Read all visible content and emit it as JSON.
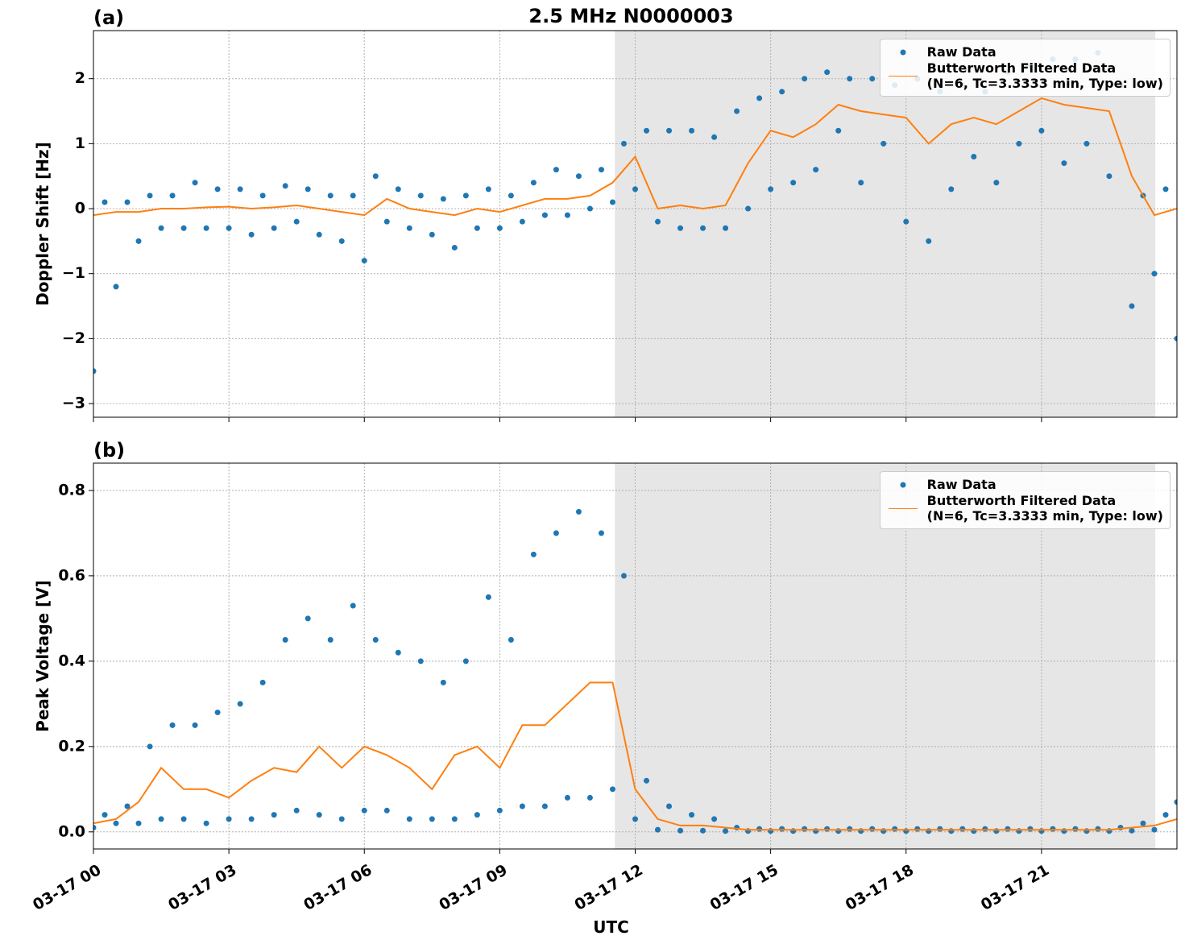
{
  "chart_data": [
    {
      "type": "line",
      "title": "2.5 MHz N0000003",
      "panel_label": "(a)",
      "ylabel": "Doppler Shift [Hz]",
      "xlim": [
        0,
        24
      ],
      "xticks": [
        0,
        3,
        6,
        9,
        12,
        15,
        18,
        21
      ],
      "ylim": [
        -3.21,
        2.74
      ],
      "yticks": [
        {
          "value": -3,
          "label": "−3"
        },
        {
          "value": -2,
          "label": "−2"
        },
        {
          "value": -1,
          "label": "−1"
        },
        0,
        1,
        2
      ],
      "grid": true,
      "shaded_span": [
        11.55,
        23.52
      ],
      "legend": "upper right",
      "series": [
        {
          "name": "Raw Data",
          "kind": "scatter",
          "color": "#1f77b4",
          "x": [
            0,
            0.25,
            0.5,
            0.75,
            1,
            1.25,
            1.5,
            1.75,
            2,
            2.25,
            2.5,
            2.75,
            3,
            3.25,
            3.5,
            3.75,
            4,
            4.25,
            4.5,
            4.75,
            5,
            5.25,
            5.5,
            5.75,
            6,
            6.25,
            6.5,
            6.75,
            7,
            7.25,
            7.5,
            7.75,
            8,
            8.25,
            8.5,
            8.75,
            9,
            9.25,
            9.5,
            9.75,
            10,
            10.25,
            10.5,
            10.75,
            11,
            11.25,
            11.5,
            11.75,
            12,
            12.25,
            12.5,
            12.75,
            13,
            13.25,
            13.5,
            13.75,
            14,
            14.25,
            14.5,
            14.75,
            15,
            15.25,
            15.5,
            15.75,
            16,
            16.25,
            16.5,
            16.75,
            17,
            17.25,
            17.5,
            17.75,
            18,
            18.25,
            18.5,
            18.75,
            19,
            19.25,
            19.5,
            19.75,
            20,
            20.25,
            20.5,
            20.75,
            21,
            21.25,
            21.5,
            21.75,
            22,
            22.25,
            22.5,
            22.75,
            23,
            23.25,
            23.5,
            23.75,
            24
          ],
          "values": [
            -2.5,
            0.1,
            -1.2,
            0.1,
            -0.5,
            0.2,
            -0.3,
            0.2,
            -0.3,
            0.4,
            -0.3,
            0.3,
            -0.3,
            0.3,
            -0.4,
            0.2,
            -0.3,
            0.35,
            -0.2,
            0.3,
            -0.4,
            0.2,
            -0.5,
            0.2,
            -0.8,
            0.5,
            -0.2,
            0.3,
            -0.3,
            0.2,
            -0.4,
            0.15,
            -0.6,
            0.2,
            -0.3,
            0.3,
            -0.3,
            0.2,
            -0.2,
            0.4,
            -0.1,
            0.6,
            -0.1,
            0.5,
            0,
            0.6,
            0.1,
            1.0,
            0.3,
            1.2,
            -0.2,
            1.2,
            -0.3,
            1.2,
            -0.3,
            1.1,
            -0.3,
            1.5,
            0,
            1.7,
            0.3,
            1.8,
            0.4,
            2.0,
            0.6,
            2.1,
            1.2,
            2.0,
            0.4,
            2.0,
            1.0,
            1.9,
            -0.2,
            2.0,
            -0.5,
            1.8,
            0.3,
            1.9,
            0.8,
            1.8,
            0.4,
            2.1,
            1.0,
            2.2,
            1.2,
            2.3,
            0.7,
            2.3,
            1.0,
            2.4,
            0.5,
            1.9,
            -1.5,
            0.2,
            -1.0,
            0.3,
            -2.0
          ]
        },
        {
          "name": "Butterworth Filtered Data\n(N=6, Tc=3.3333 min, Type: low)",
          "kind": "line",
          "color": "#ff7f0e",
          "x": [
            0,
            0.5,
            1,
            1.5,
            2,
            2.5,
            3,
            3.5,
            4,
            4.5,
            5,
            5.5,
            6,
            6.5,
            7,
            7.5,
            8,
            8.5,
            9,
            9.5,
            10,
            10.5,
            11,
            11.5,
            12,
            12.5,
            13,
            13.5,
            14,
            14.5,
            15,
            15.5,
            16,
            16.5,
            17,
            17.5,
            18,
            18.5,
            19,
            19.5,
            20,
            20.5,
            21,
            21.5,
            22,
            22.5,
            23,
            23.5,
            24
          ],
          "values": [
            -0.1,
            -0.05,
            -0.05,
            0,
            0,
            0.02,
            0.03,
            0,
            0.02,
            0.05,
            0,
            -0.05,
            -0.1,
            0.15,
            0,
            -0.05,
            -0.1,
            0,
            -0.05,
            0.05,
            0.15,
            0.15,
            0.2,
            0.4,
            0.8,
            0,
            0.05,
            0,
            0.05,
            0.7,
            1.2,
            1.1,
            1.3,
            1.6,
            1.5,
            1.45,
            1.4,
            1.0,
            1.3,
            1.4,
            1.3,
            1.5,
            1.7,
            1.6,
            1.55,
            1.5,
            0.5,
            -0.1,
            0
          ]
        }
      ]
    },
    {
      "type": "line",
      "panel_label": "(b)",
      "ylabel": "Peak Voltage [V]",
      "xlabel": "UTC",
      "xlim": [
        0,
        24
      ],
      "xticks": [
        {
          "value": 0,
          "label": "03-17 00"
        },
        {
          "value": 3,
          "label": "03-17 03"
        },
        {
          "value": 6,
          "label": "03-17 06"
        },
        {
          "value": 9,
          "label": "03-17 09"
        },
        {
          "value": 12,
          "label": "03-17 12"
        },
        {
          "value": 15,
          "label": "03-17 15"
        },
        {
          "value": 18,
          "label": "03-17 18"
        },
        {
          "value": 21,
          "label": "03-17 21"
        }
      ],
      "ylim": [
        -0.04,
        0.864
      ],
      "yticks": [
        {
          "value": 0,
          "label": "0.0"
        },
        0.2,
        0.4,
        0.6,
        0.8
      ],
      "grid": true,
      "shaded_span": [
        11.55,
        23.52
      ],
      "legend": "upper right",
      "series": [
        {
          "name": "Raw Data",
          "kind": "scatter",
          "color": "#1f77b4",
          "x": [
            0,
            0.25,
            0.5,
            0.75,
            1,
            1.25,
            1.5,
            1.75,
            2,
            2.25,
            2.5,
            2.75,
            3,
            3.25,
            3.5,
            3.75,
            4,
            4.25,
            4.5,
            4.75,
            5,
            5.25,
            5.5,
            5.75,
            6,
            6.25,
            6.5,
            6.75,
            7,
            7.25,
            7.5,
            7.75,
            8,
            8.25,
            8.5,
            8.75,
            9,
            9.25,
            9.5,
            9.75,
            10,
            10.25,
            10.5,
            10.75,
            11,
            11.25,
            11.5,
            11.75,
            12,
            12.25,
            12.5,
            12.75,
            13,
            13.25,
            13.5,
            13.75,
            14,
            14.25,
            14.5,
            14.75,
            15,
            15.25,
            15.5,
            15.75,
            16,
            16.25,
            16.5,
            16.75,
            17,
            17.25,
            17.5,
            17.75,
            18,
            18.25,
            18.5,
            18.75,
            19,
            19.25,
            19.5,
            19.75,
            20,
            20.25,
            20.5,
            20.75,
            21,
            21.25,
            21.5,
            21.75,
            22,
            22.25,
            22.5,
            22.75,
            23,
            23.25,
            23.5,
            23.75,
            24
          ],
          "values": [
            0.01,
            0.04,
            0.02,
            0.06,
            0.02,
            0.2,
            0.03,
            0.25,
            0.03,
            0.25,
            0.02,
            0.28,
            0.03,
            0.3,
            0.03,
            0.35,
            0.04,
            0.45,
            0.05,
            0.5,
            0.04,
            0.45,
            0.03,
            0.53,
            0.05,
            0.45,
            0.05,
            0.42,
            0.03,
            0.4,
            0.03,
            0.35,
            0.03,
            0.4,
            0.04,
            0.55,
            0.05,
            0.45,
            0.06,
            0.65,
            0.06,
            0.7,
            0.08,
            0.75,
            0.08,
            0.7,
            0.1,
            0.6,
            0.03,
            0.12,
            0.005,
            0.06,
            0.003,
            0.04,
            0.003,
            0.03,
            0.002,
            0.01,
            0.002,
            0.007,
            0.002,
            0.007,
            0.002,
            0.007,
            0.002,
            0.007,
            0.002,
            0.007,
            0.002,
            0.007,
            0.002,
            0.007,
            0.002,
            0.007,
            0.002,
            0.007,
            0.002,
            0.007,
            0.002,
            0.007,
            0.002,
            0.007,
            0.002,
            0.007,
            0.002,
            0.007,
            0.002,
            0.007,
            0.002,
            0.007,
            0.002,
            0.01,
            0.003,
            0.02,
            0.005,
            0.04,
            0.07
          ]
        },
        {
          "name": "Butterworth Filtered Data\n(N=6, Tc=3.3333 min, Type: low)",
          "kind": "line",
          "color": "#ff7f0e",
          "x": [
            0,
            0.5,
            1,
            1.5,
            2,
            2.5,
            3,
            3.5,
            4,
            4.5,
            5,
            5.5,
            6,
            6.5,
            7,
            7.5,
            8,
            8.5,
            9,
            9.5,
            10,
            10.5,
            11,
            11.5,
            12,
            12.5,
            13,
            13.5,
            14,
            14.5,
            15,
            15.5,
            16,
            16.5,
            17,
            17.5,
            18,
            18.5,
            19,
            19.5,
            20,
            20.5,
            21,
            21.5,
            22,
            22.5,
            23,
            23.5,
            24
          ],
          "values": [
            0.02,
            0.03,
            0.07,
            0.15,
            0.1,
            0.1,
            0.08,
            0.12,
            0.15,
            0.14,
            0.2,
            0.15,
            0.2,
            0.18,
            0.15,
            0.1,
            0.18,
            0.2,
            0.15,
            0.25,
            0.25,
            0.3,
            0.35,
            0.35,
            0.1,
            0.03,
            0.015,
            0.015,
            0.01,
            0.005,
            0.005,
            0.005,
            0.005,
            0.005,
            0.005,
            0.005,
            0.005,
            0.005,
            0.005,
            0.005,
            0.005,
            0.005,
            0.005,
            0.005,
            0.005,
            0.005,
            0.01,
            0.015,
            0.03
          ]
        }
      ]
    }
  ]
}
